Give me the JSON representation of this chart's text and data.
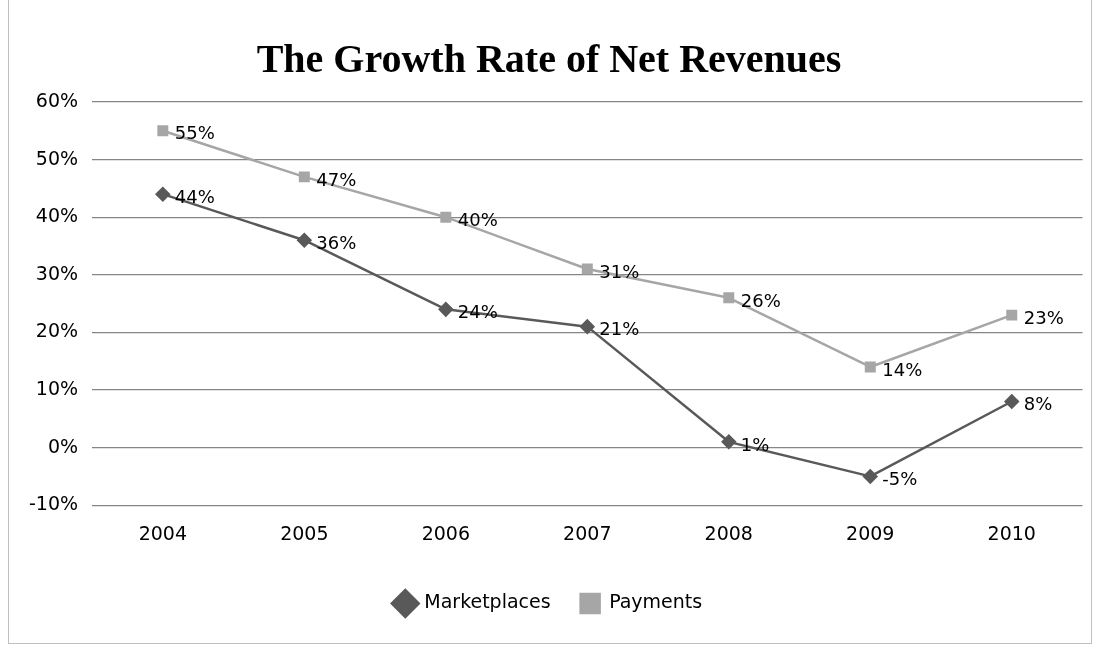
{
  "chart_data": {
    "type": "line",
    "title": "The Growth Rate of Net Revenues",
    "categories": [
      "2004",
      "2005",
      "2006",
      "2007",
      "2008",
      "2009",
      "2010"
    ],
    "series": [
      {
        "name": "Marketplaces",
        "color": "#595959",
        "marker": "diamond",
        "values": [
          44,
          36,
          24,
          21,
          1,
          -5,
          8
        ],
        "value_labels": [
          "44%",
          "36%",
          "24%",
          "21%",
          "1%",
          "-5%",
          "8%"
        ]
      },
      {
        "name": "Payments",
        "color": "#a6a6a6",
        "marker": "square",
        "values": [
          55,
          47,
          40,
          31,
          26,
          14,
          23
        ],
        "value_labels": [
          "55%",
          "47%",
          "40%",
          "31%",
          "26%",
          "14%",
          "23%"
        ]
      }
    ],
    "ylim": [
      -10,
      60
    ],
    "yticks": [
      {
        "value": -10,
        "label": "-10%"
      },
      {
        "value": 0,
        "label": "0%"
      },
      {
        "value": 10,
        "label": "10%"
      },
      {
        "value": 20,
        "label": "20%"
      },
      {
        "value": 30,
        "label": "30%"
      },
      {
        "value": 40,
        "label": "40%"
      },
      {
        "value": 50,
        "label": "50%"
      },
      {
        "value": 60,
        "label": "60%"
      }
    ],
    "grid": "y",
    "legend": "bottom",
    "line_style": "solid"
  }
}
